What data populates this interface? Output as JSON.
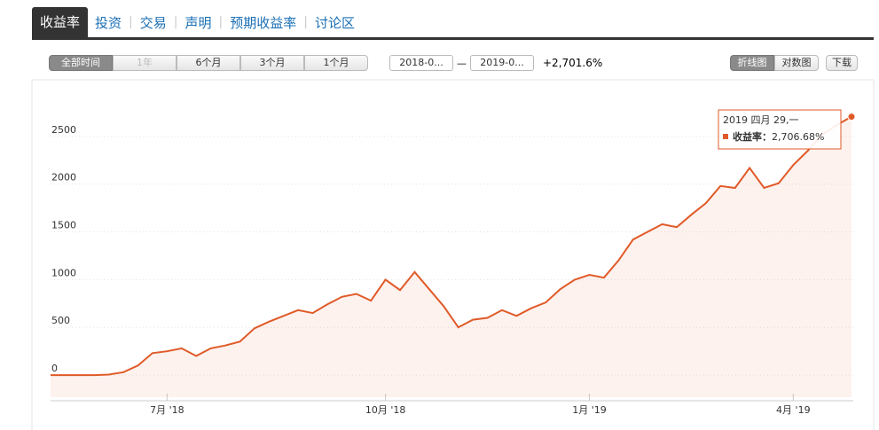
{
  "tabs": [
    "收益率",
    "投资",
    "交易",
    "声明",
    "预期收益率",
    "讨论区"
  ],
  "range_buttons": [
    "全部时间",
    "1年",
    "6个月",
    "3个月",
    "1个月"
  ],
  "date_from": "2018-0...",
  "date_sep": "—",
  "date_to": "2019-0...",
  "change": "+2,701.6%",
  "view_buttons": [
    "折线图",
    "对数图"
  ],
  "download": "下载",
  "chart_data": {
    "type": "line",
    "categories": [
      null,
      null,
      null,
      null,
      null,
      null,
      null,
      null,
      "7月 '18",
      null,
      null,
      null,
      null,
      null,
      null,
      null,
      null,
      null,
      null,
      null,
      null,
      null,
      null,
      "10月 '18",
      null,
      null,
      null,
      null,
      null,
      null,
      null,
      null,
      null,
      null,
      null,
      null,
      null,
      "1月 '19",
      null,
      null,
      null,
      null,
      null,
      null,
      null,
      null,
      null,
      null,
      null,
      null,
      null,
      "4月 '19",
      null,
      null,
      null,
      null
    ],
    "series": [
      {
        "name": "收益率",
        "color": "#e05a28",
        "values": [
          0,
          0,
          0,
          0,
          5,
          30,
          100,
          230,
          250,
          280,
          200,
          280,
          310,
          350,
          490,
          560,
          620,
          680,
          650,
          740,
          820,
          850,
          780,
          1000,
          890,
          1080,
          900,
          720,
          500,
          580,
          600,
          680,
          620,
          700,
          760,
          900,
          1000,
          1050,
          1020,
          1200,
          1420,
          1500,
          1580,
          1550,
          1680,
          1800,
          1980,
          1960,
          2170,
          1960,
          2010,
          2200,
          2350,
          2520,
          2620,
          2706.68
        ],
        "value_labels": [
          null,
          null,
          null,
          null,
          null,
          null,
          null,
          null,
          null,
          null,
          null,
          null,
          null,
          null,
          null,
          null,
          null,
          null,
          null,
          null,
          null,
          null,
          null,
          null,
          null,
          null,
          null,
          null,
          null,
          null,
          null,
          null,
          null,
          null,
          null,
          null,
          null,
          null,
          null,
          null,
          null,
          null,
          null,
          null,
          null,
          null,
          null,
          null,
          null,
          null,
          null,
          null,
          null,
          null,
          null,
          "2,706.68%"
        ]
      }
    ],
    "tooltip_title": "2019 四月 29,一",
    "ylim": [
      -250,
      3000
    ],
    "yticks": [
      0,
      500,
      1000,
      1500,
      2000,
      2500
    ],
    "grid": true
  }
}
